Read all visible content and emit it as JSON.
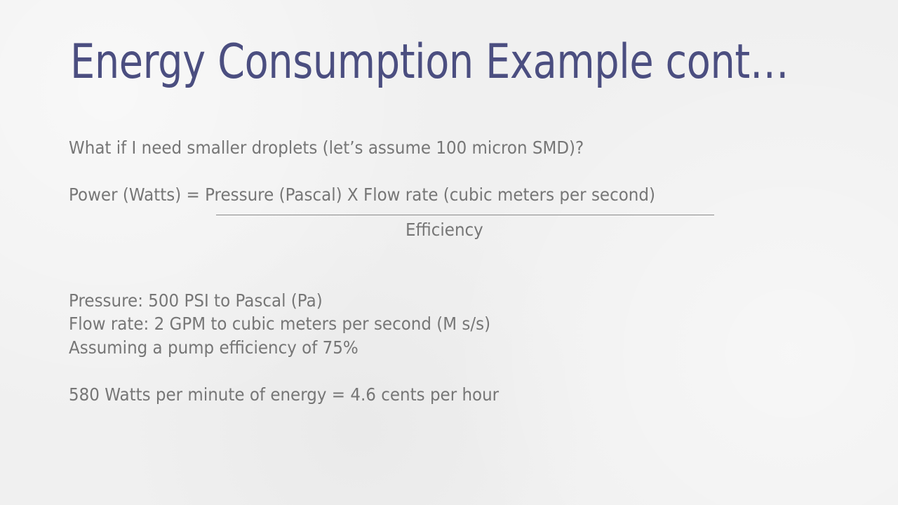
{
  "slide": {
    "title": "Energy Consumption Example cont…",
    "question": "What if I need smaller droplets (let’s assume 100 micron SMD)?",
    "formula": {
      "numerator": "Power (Watts) = Pressure (Pascal) X Flow rate (cubic meters per second)",
      "denominator": "Efficiency"
    },
    "givens": [
      "Pressure: 500 PSI to Pascal (Pa)",
      "Flow rate: 2 GPM to cubic meters per second (M s/s)",
      "Assuming a pump efficiency of 75%"
    ],
    "result": "580 Watts per minute of energy = 4.6 cents per hour"
  },
  "colors": {
    "title": "#4b4e80",
    "body_text": "#767676",
    "background": "#f0f0f0"
  }
}
